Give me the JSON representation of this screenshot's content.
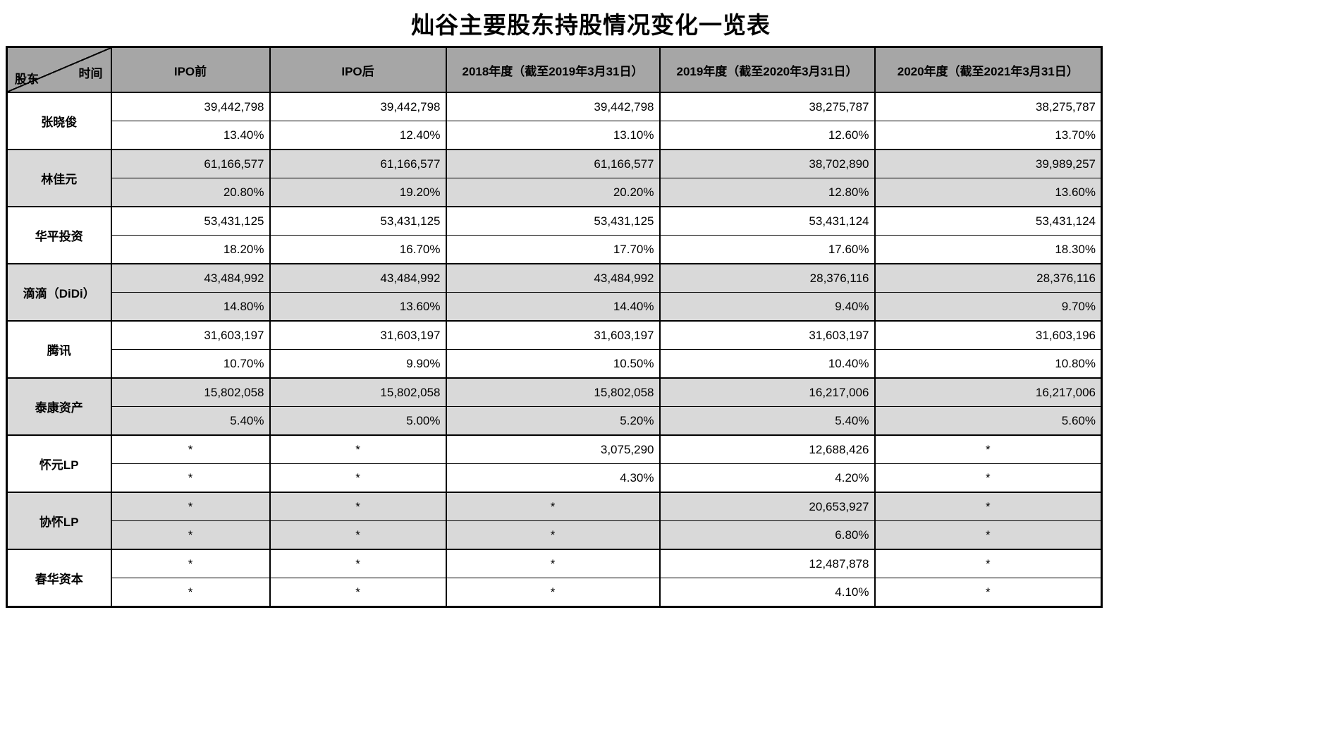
{
  "colors": {
    "header_bg": "#a6a6a6",
    "shaded_row_bg": "#d9d9d9",
    "row_bg": "#ffffff",
    "border": "#000000"
  },
  "chart_data": {
    "type": "table",
    "title": "灿谷主要股东持股情况变化一览表",
    "corner_bottom_left": "股东",
    "corner_top_right": "时间",
    "missing_marker": "*",
    "columns": [
      "IPO前",
      "IPO后",
      "2018年度（截至2019年3月31日）",
      "2019年度（截至2020年3月31日）",
      "2020年度（截至2021年3月31日）"
    ],
    "rows": [
      {
        "shareholder": "张晓俊",
        "shares": [
          "39,442,798",
          "39,442,798",
          "39,442,798",
          "38,275,787",
          "38,275,787"
        ],
        "percents": [
          "13.40%",
          "12.40%",
          "13.10%",
          "12.60%",
          "13.70%"
        ]
      },
      {
        "shareholder": "林佳元",
        "shares": [
          "61,166,577",
          "61,166,577",
          "61,166,577",
          "38,702,890",
          "39,989,257"
        ],
        "percents": [
          "20.80%",
          "19.20%",
          "20.20%",
          "12.80%",
          "13.60%"
        ]
      },
      {
        "shareholder": "华平投资",
        "shares": [
          "53,431,125",
          "53,431,125",
          "53,431,125",
          "53,431,124",
          "53,431,124"
        ],
        "percents": [
          "18.20%",
          "16.70%",
          "17.70%",
          "17.60%",
          "18.30%"
        ]
      },
      {
        "shareholder": "滴滴（DiDi）",
        "shares": [
          "43,484,992",
          "43,484,992",
          "43,484,992",
          "28,376,116",
          "28,376,116"
        ],
        "percents": [
          "14.80%",
          "13.60%",
          "14.40%",
          "9.40%",
          "9.70%"
        ]
      },
      {
        "shareholder": "腾讯",
        "shares": [
          "31,603,197",
          "31,603,197",
          "31,603,197",
          "31,603,197",
          "31,603,196"
        ],
        "percents": [
          "10.70%",
          "9.90%",
          "10.50%",
          "10.40%",
          "10.80%"
        ]
      },
      {
        "shareholder": "泰康资产",
        "shares": [
          "15,802,058",
          "15,802,058",
          "15,802,058",
          "16,217,006",
          "16,217,006"
        ],
        "percents": [
          "5.40%",
          "5.00%",
          "5.20%",
          "5.40%",
          "5.60%"
        ]
      },
      {
        "shareholder": "怀元LP",
        "shares": [
          "*",
          "*",
          "3,075,290",
          "12,688,426",
          "*"
        ],
        "percents": [
          "*",
          "*",
          "4.30%",
          "4.20%",
          "*"
        ]
      },
      {
        "shareholder": "协怀LP",
        "shares": [
          "*",
          "*",
          "*",
          "20,653,927",
          "*"
        ],
        "percents": [
          "*",
          "*",
          "*",
          "6.80%",
          "*"
        ]
      },
      {
        "shareholder": "春华资本",
        "shares": [
          "*",
          "*",
          "*",
          "12,487,878",
          "*"
        ],
        "percents": [
          "*",
          "*",
          "*",
          "4.10%",
          "*"
        ]
      }
    ]
  }
}
